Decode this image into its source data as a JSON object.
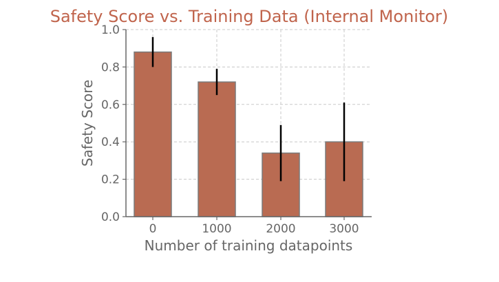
{
  "colors": {
    "bar": "#b96b52",
    "bar_edge": "#7a7a7a",
    "title": "#c0644c",
    "axis_text": "#666666",
    "grid": "#c8c8c8",
    "axis_line": "#666666",
    "error_bar": "#000000"
  },
  "chart_data": {
    "type": "bar",
    "title": "Safety Score vs. Training Data (Internal Monitor)",
    "xlabel": "Number of training datapoints",
    "ylabel": "Safety Score",
    "categories": [
      "0",
      "1000",
      "2000",
      "3000"
    ],
    "values": [
      0.88,
      0.72,
      0.34,
      0.4
    ],
    "error_low": [
      0.8,
      0.65,
      0.19,
      0.19
    ],
    "error_high": [
      0.96,
      0.79,
      0.49,
      0.61
    ],
    "ylim": [
      0.0,
      1.0
    ],
    "yticks": [
      "0.0",
      "0.2",
      "0.4",
      "0.6",
      "0.8",
      "1.0"
    ],
    "ytick_values": [
      0.0,
      0.2,
      0.4,
      0.6,
      0.8,
      1.0
    ],
    "grid": true
  }
}
